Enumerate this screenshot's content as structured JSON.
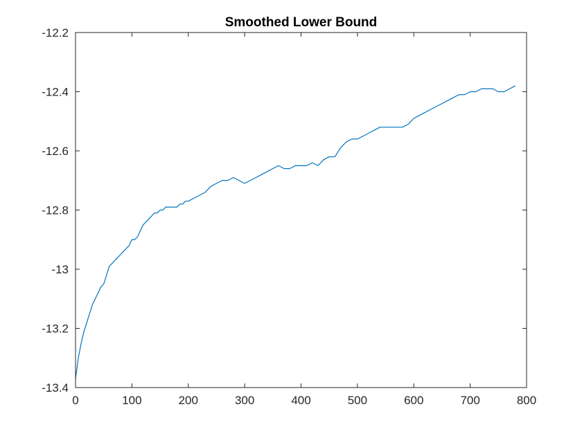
{
  "chart_data": {
    "type": "line",
    "title": "Smoothed Lower Bound",
    "xlabel": "",
    "ylabel": "",
    "xlim": [
      0,
      800
    ],
    "ylim": [
      -13.4,
      -12.2
    ],
    "xticks": [
      0,
      100,
      200,
      300,
      400,
      500,
      600,
      700,
      800
    ],
    "xtick_labels": [
      "0",
      "100",
      "200",
      "300",
      "400",
      "500",
      "600",
      "700",
      "800"
    ],
    "yticks": [
      -12.2,
      -12.4,
      -12.6,
      -12.8,
      -13,
      -13.2,
      -13.4
    ],
    "ytick_labels": [
      "-12.2",
      "-12.4",
      "-12.6",
      "-12.8",
      "-13",
      "-13.2",
      "-13.4"
    ],
    "grid": false,
    "line_color": "#0072BD",
    "series": [
      {
        "x": [
          0,
          5,
          10,
          15,
          20,
          25,
          30,
          35,
          40,
          45,
          50,
          55,
          60,
          65,
          70,
          75,
          80,
          85,
          90,
          95,
          100,
          105,
          110,
          115,
          120,
          125,
          130,
          135,
          140,
          145,
          150,
          155,
          160,
          165,
          170,
          175,
          180,
          185,
          190,
          195,
          200,
          210,
          220,
          230,
          240,
          250,
          260,
          270,
          280,
          290,
          300,
          310,
          320,
          330,
          340,
          350,
          360,
          370,
          380,
          390,
          400,
          410,
          420,
          430,
          440,
          450,
          460,
          470,
          480,
          490,
          500,
          510,
          520,
          530,
          540,
          550,
          560,
          570,
          580,
          590,
          600,
          610,
          620,
          630,
          640,
          650,
          660,
          670,
          680,
          690,
          700,
          710,
          720,
          730,
          740,
          750,
          760,
          770,
          780
        ],
        "y": [
          -13.37,
          -13.3,
          -13.25,
          -13.21,
          -13.18,
          -13.15,
          -13.12,
          -13.1,
          -13.08,
          -13.06,
          -13.05,
          -13.02,
          -12.99,
          -12.98,
          -12.97,
          -12.96,
          -12.95,
          -12.94,
          -12.93,
          -12.92,
          -12.9,
          -12.9,
          -12.89,
          -12.87,
          -12.85,
          -12.84,
          -12.83,
          -12.82,
          -12.81,
          -12.81,
          -12.8,
          -12.8,
          -12.79,
          -12.79,
          -12.79,
          -12.79,
          -12.79,
          -12.78,
          -12.78,
          -12.77,
          -12.77,
          -12.76,
          -12.75,
          -12.74,
          -12.72,
          -12.71,
          -12.7,
          -12.7,
          -12.69,
          -12.7,
          -12.71,
          -12.7,
          -12.69,
          -12.68,
          -12.67,
          -12.66,
          -12.65,
          -12.66,
          -12.66,
          -12.65,
          -12.65,
          -12.65,
          -12.64,
          -12.65,
          -12.63,
          -12.62,
          -12.62,
          -12.59,
          -12.57,
          -12.56,
          -12.56,
          -12.55,
          -12.54,
          -12.53,
          -12.52,
          -12.52,
          -12.52,
          -12.52,
          -12.52,
          -12.51,
          -12.49,
          -12.48,
          -12.47,
          -12.46,
          -12.45,
          -12.44,
          -12.43,
          -12.42,
          -12.41,
          -12.41,
          -12.4,
          -12.4,
          -12.39,
          -12.39,
          -12.39,
          -12.4,
          -12.4,
          -12.39,
          -12.38
        ]
      }
    ]
  }
}
